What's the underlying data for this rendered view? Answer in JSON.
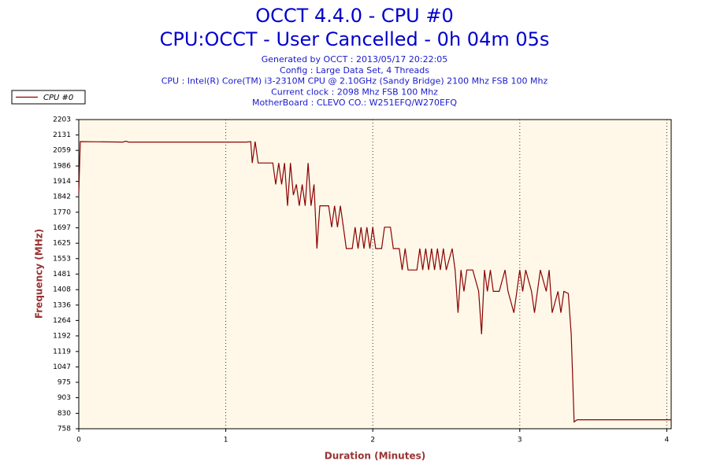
{
  "chart_data": {
    "type": "line",
    "title": "OCCT 4.4.0 - CPU #0",
    "subtitle": "CPU:OCCT - User Cancelled - 0h 04m 05s",
    "annotations": [
      "Generated by OCCT : 2013/05/17 20:22:05",
      "Config : Large Data Set, 4 Threads",
      "CPU : Intel(R) Core(TM) i3-2310M CPU @ 2.10GHz (Sandy Bridge) 2100 Mhz FSB 100 Mhz",
      "Current clock : 2098 Mhz FSB 100 Mhz",
      "MotherBoard : CLEVO CO.: W251EFQ/W270EFQ"
    ],
    "x_label": "Duration (Minutes)",
    "y_label": "Frequency (MHz)",
    "xlim": [
      0,
      4.03
    ],
    "xticks": [
      0,
      1,
      2,
      3,
      4
    ],
    "ylim": [
      758,
      2203
    ],
    "yticks": [
      758,
      830,
      903,
      975,
      1047,
      1119,
      1192,
      1264,
      1336,
      1408,
      1481,
      1553,
      1625,
      1697,
      1770,
      1842,
      1914,
      1986,
      2059,
      2131,
      2203
    ],
    "grid": true,
    "legend": "top-left",
    "x": [
      0,
      0.01,
      0.3,
      0.32,
      0.34,
      1.14,
      1.17,
      1.18,
      1.2,
      1.22,
      1.3,
      1.32,
      1.34,
      1.36,
      1.38,
      1.4,
      1.42,
      1.44,
      1.46,
      1.48,
      1.5,
      1.52,
      1.54,
      1.56,
      1.58,
      1.6,
      1.62,
      1.64,
      1.7,
      1.72,
      1.74,
      1.76,
      1.78,
      1.8,
      1.82,
      1.86,
      1.88,
      1.9,
      1.92,
      1.94,
      1.96,
      1.98,
      2.0,
      2.02,
      2.06,
      2.08,
      2.1,
      2.12,
      2.14,
      2.18,
      2.2,
      2.22,
      2.24,
      2.3,
      2.32,
      2.34,
      2.36,
      2.38,
      2.4,
      2.42,
      2.44,
      2.46,
      2.48,
      2.5,
      2.52,
      2.54,
      2.56,
      2.58,
      2.6,
      2.62,
      2.64,
      2.68,
      2.72,
      2.74,
      2.76,
      2.78,
      2.8,
      2.82,
      2.86,
      2.9,
      2.92,
      2.96,
      2.98,
      3.0,
      3.02,
      3.04,
      3.08,
      3.1,
      3.12,
      3.14,
      3.18,
      3.2,
      3.22,
      3.26,
      3.28,
      3.3,
      3.33,
      3.35,
      3.37,
      3.39,
      4.03
    ],
    "series": [
      {
        "name": "CPU #0",
        "color": "#8b0000",
        "values": [
          1860,
          2100,
          2098,
          2102,
          2098,
          2098,
          2100,
          2000,
          2100,
          2000,
          2000,
          2000,
          1900,
          2000,
          1900,
          2000,
          1800,
          2000,
          1850,
          1900,
          1800,
          1900,
          1800,
          2000,
          1800,
          1900,
          1600,
          1800,
          1800,
          1700,
          1800,
          1700,
          1800,
          1700,
          1600,
          1600,
          1700,
          1600,
          1700,
          1600,
          1700,
          1600,
          1700,
          1600,
          1600,
          1700,
          1700,
          1700,
          1600,
          1600,
          1500,
          1600,
          1500,
          1500,
          1600,
          1500,
          1600,
          1500,
          1600,
          1500,
          1600,
          1500,
          1600,
          1500,
          1550,
          1600,
          1500,
          1300,
          1500,
          1400,
          1500,
          1500,
          1400,
          1200,
          1500,
          1400,
          1500,
          1400,
          1400,
          1500,
          1400,
          1300,
          1400,
          1500,
          1400,
          1500,
          1400,
          1300,
          1400,
          1500,
          1400,
          1500,
          1300,
          1400,
          1300,
          1400,
          1390,
          1200,
          790,
          800,
          800
        ]
      }
    ]
  }
}
